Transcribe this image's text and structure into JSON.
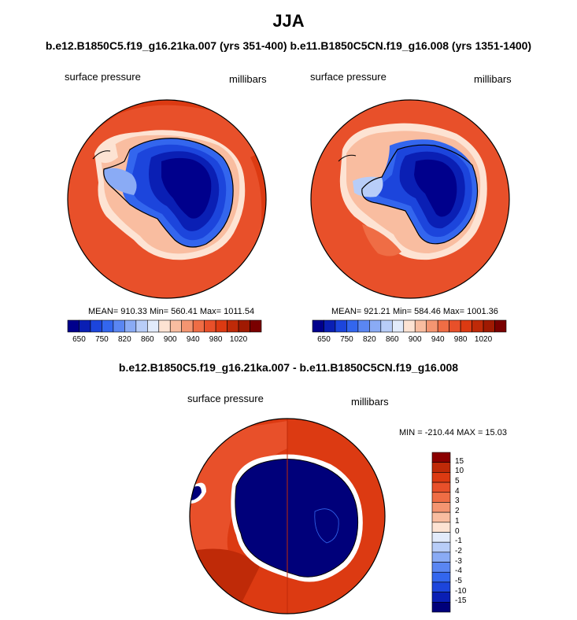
{
  "header": {
    "title": "JJA",
    "subtitle": "b.e12.B1850C5.f19_g16.21ka.007 (yrs 351-400) b.e11.B1850C5CN.f19_g16.008 (yrs 1351-1400)"
  },
  "colors": {
    "abs_scale": [
      "#00008c",
      "#0a1fb4",
      "#1c45dc",
      "#3366ee",
      "#5a86f2",
      "#8aabf5",
      "#b8cdf8",
      "#e2ebfb",
      "#fde3d3",
      "#f9bda0",
      "#f49571",
      "#ef6d45",
      "#e8502a",
      "#dc3a12",
      "#bf2a08",
      "#a01a02",
      "#7a0000"
    ],
    "diff_scale": [
      "#00007a",
      "#0a1fb4",
      "#1c45dc",
      "#3366ee",
      "#5a86f2",
      "#8aabf5",
      "#b8cdf8",
      "#e2ebfb",
      "#fde3d3",
      "#f9bda0",
      "#f49571",
      "#ef6d45",
      "#e8502a",
      "#dc3a12",
      "#bf2a08",
      "#8b0000"
    ]
  },
  "panels": [
    {
      "var_label": "surface pressure",
      "units_label": "millibars",
      "stats": "MEAN= 910.33  Min= 560.41  Max= 1011.54",
      "colorbar_ticks": [
        "650",
        "750",
        "820",
        "860",
        "900",
        "940",
        "980",
        "1020"
      ]
    },
    {
      "var_label": "surface pressure",
      "units_label": "millibars",
      "stats": "MEAN= 921.21  Min= 584.46  Max= 1001.36",
      "colorbar_ticks": [
        "650",
        "750",
        "820",
        "860",
        "900",
        "940",
        "980",
        "1020"
      ]
    }
  ],
  "diff": {
    "title": "b.e12.B1850C5.f19_g16.21ka.007 - b.e11.B1850C5CN.f19_g16.008",
    "var_label": "surface pressure",
    "units_label": "millibars",
    "stats": "MIN = -210.44 MAX =  15.03",
    "colorbar_ticks": [
      "15",
      "10",
      "5",
      "4",
      "3",
      "2",
      "1",
      "0",
      "-1",
      "-2",
      "-3",
      "-4",
      "-5",
      "-10",
      "-15"
    ]
  },
  "chart_data": [
    {
      "type": "heatmap",
      "projection": "south polar stereographic",
      "title": "b.e12.B1850C5.f19_g16.21ka.007 (yrs 351-400)",
      "variable": "surface pressure",
      "units": "millibars",
      "stats": {
        "mean": 910.33,
        "min": 560.41,
        "max": 1011.54
      },
      "contour_levels": [
        650,
        750,
        820,
        860,
        900,
        940,
        980,
        1020
      ]
    },
    {
      "type": "heatmap",
      "projection": "south polar stereographic",
      "title": "b.e11.B1850C5CN.f19_g16.008 (yrs 1351-1400)",
      "variable": "surface pressure",
      "units": "millibars",
      "stats": {
        "mean": 921.21,
        "min": 584.46,
        "max": 1001.36
      },
      "contour_levels": [
        650,
        750,
        820,
        860,
        900,
        940,
        980,
        1020
      ]
    },
    {
      "type": "heatmap",
      "projection": "south polar stereographic",
      "title": "b.e12.B1850C5.f19_g16.21ka.007 - b.e11.B1850C5CN.f19_g16.008",
      "variable": "surface pressure",
      "units": "millibars",
      "stats": {
        "min": -210.44,
        "max": 15.03
      },
      "contour_levels": [
        -15,
        -10,
        -5,
        -4,
        -3,
        -2,
        -1,
        0,
        1,
        2,
        3,
        4,
        5,
        10,
        15
      ]
    }
  ]
}
